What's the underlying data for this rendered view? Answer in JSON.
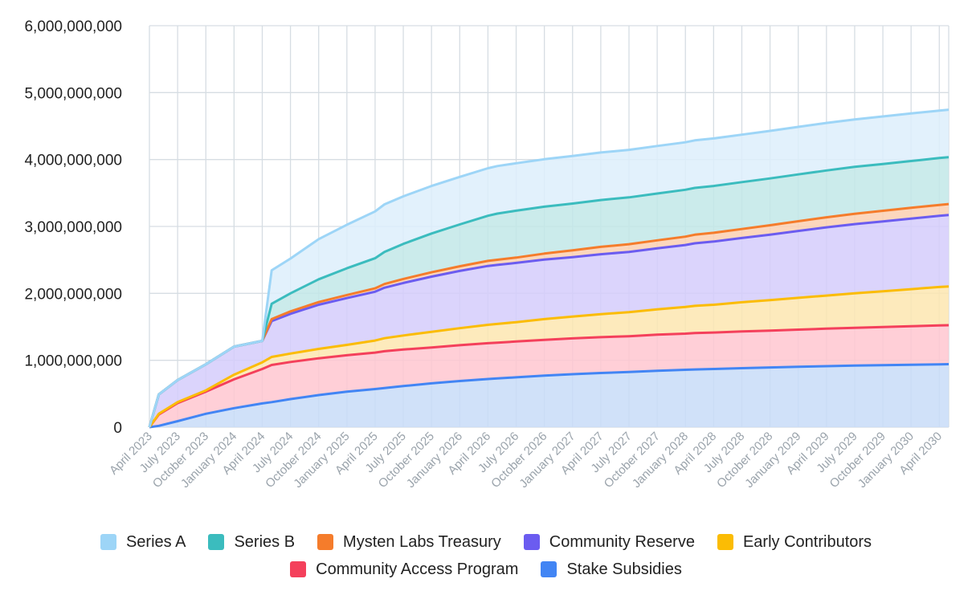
{
  "chart_data": {
    "type": "area",
    "stacked": true,
    "title": "",
    "xlabel": "",
    "ylabel": "",
    "ylim": [
      0,
      6000000000
    ],
    "y_ticks": [
      "0",
      "1,000,000,000",
      "2,000,000,000",
      "3,000,000,000",
      "4,000,000,000",
      "5,000,000,000",
      "6,000,000,000"
    ],
    "x_tick_labels": [
      "April 2023",
      "July 2023",
      "October 2023",
      "January 2024",
      "April 2024",
      "July 2024",
      "October 2024",
      "January 2025",
      "April 2025",
      "July 2025",
      "October 2025",
      "January 2026",
      "April 2026",
      "July 2026",
      "October 2026",
      "January 2027",
      "April 2027",
      "July 2027",
      "October 2027",
      "January 2028",
      "April 2028",
      "July 2028",
      "October 2028",
      "January 2029",
      "April 2029",
      "July 2029",
      "October 2029",
      "January 2030",
      "April 2030"
    ],
    "x": [
      "2023-04",
      "2023-05",
      "2023-07",
      "2023-10",
      "2024-01",
      "2024-04",
      "2024-05",
      "2024-07",
      "2024-10",
      "2025-01",
      "2025-04",
      "2025-05",
      "2025-07",
      "2025-10",
      "2026-01",
      "2026-04",
      "2026-05",
      "2026-07",
      "2026-10",
      "2027-01",
      "2027-04",
      "2027-07",
      "2027-10",
      "2028-01",
      "2028-02",
      "2028-04",
      "2028-07",
      "2028-10",
      "2029-01",
      "2029-04",
      "2029-07",
      "2029-10",
      "2030-01",
      "2030-04",
      "2030-05"
    ],
    "grid": true,
    "legend_position": "bottom",
    "series": [
      {
        "name": "Stake Subsidies",
        "color": "#4285f4",
        "fill": "#c8dcf8",
        "values": [
          0,
          20000000,
          90000000,
          200000000,
          285000000,
          355000000,
          375000000,
          420000000,
          480000000,
          530000000,
          570000000,
          585000000,
          615000000,
          655000000,
          690000000,
          720000000,
          728000000,
          745000000,
          770000000,
          792000000,
          810000000,
          825000000,
          842000000,
          858000000,
          863000000,
          870000000,
          882000000,
          893000000,
          903000000,
          912000000,
          920000000,
          926000000,
          933000000,
          940000000,
          942000000
        ]
      },
      {
        "name": "Community Access Program",
        "color": "#f4405b",
        "fill": "#ffc7d0",
        "values": [
          0,
          170000000,
          270000000,
          330000000,
          430000000,
          515000000,
          555000000,
          555000000,
          550000000,
          545000000,
          545000000,
          550000000,
          545000000,
          535000000,
          535000000,
          535000000,
          535000000,
          535000000,
          535000000,
          535000000,
          535000000,
          535000000,
          540000000,
          540000000,
          545000000,
          545000000,
          550000000,
          550000000,
          555000000,
          560000000,
          565000000,
          570000000,
          575000000,
          580000000,
          582000000
        ]
      },
      {
        "name": "Early Contributors",
        "color": "#fbbc04",
        "fill": "#fde6b0",
        "values": [
          0,
          10000000,
          15000000,
          20000000,
          70000000,
          100000000,
          120000000,
          125000000,
          140000000,
          155000000,
          180000000,
          195000000,
          210000000,
          235000000,
          255000000,
          275000000,
          280000000,
          290000000,
          310000000,
          325000000,
          345000000,
          360000000,
          380000000,
          400000000,
          405000000,
          415000000,
          435000000,
          455000000,
          475000000,
          495000000,
          515000000,
          535000000,
          555000000,
          575000000,
          580000000
        ]
      },
      {
        "name": "Community Reserve",
        "color": "#6b5cf0",
        "fill": "#d5cdfb",
        "values": [
          0,
          290000000,
          330000000,
          390000000,
          420000000,
          320000000,
          535000000,
          595000000,
          660000000,
          700000000,
          730000000,
          755000000,
          785000000,
          825000000,
          855000000,
          880000000,
          882000000,
          885000000,
          890000000,
          890000000,
          895000000,
          900000000,
          910000000,
          925000000,
          935000000,
          945000000,
          960000000,
          980000000,
          1000000000,
          1020000000,
          1035000000,
          1045000000,
          1055000000,
          1065000000,
          1068000000
        ]
      },
      {
        "name": "Mysten Labs Treasury",
        "color": "#f57c2b",
        "fill": "#fcd0b2",
        "values": [
          0,
          0,
          0,
          0,
          0,
          0,
          30000000,
          35000000,
          40000000,
          45000000,
          50000000,
          55000000,
          60000000,
          65000000,
          70000000,
          75000000,
          77000000,
          80000000,
          90000000,
          100000000,
          110000000,
          115000000,
          120000000,
          125000000,
          128000000,
          130000000,
          135000000,
          140000000,
          145000000,
          150000000,
          155000000,
          158000000,
          160000000,
          162000000,
          163000000
        ]
      },
      {
        "name": "Series B",
        "color": "#3bbcbe",
        "fill": "#c2e7e7",
        "values": [
          0,
          0,
          0,
          0,
          0,
          0,
          230000000,
          270000000,
          340000000,
          400000000,
          450000000,
          480000000,
          525000000,
          580000000,
          625000000,
          675000000,
          690000000,
          700000000,
          700000000,
          700000000,
          700000000,
          700000000,
          700000000,
          700000000,
          700000000,
          700000000,
          700000000,
          700000000,
          700000000,
          700000000,
          700000000,
          700000000,
          700000000,
          700000000,
          700000000
        ]
      },
      {
        "name": "Series A",
        "color": "#9dd5f7",
        "fill": "#ddeffb",
        "values": [
          0,
          0,
          0,
          0,
          0,
          0,
          500000000,
          520000000,
          600000000,
          650000000,
          700000000,
          710000000,
          710000000,
          710000000,
          710000000,
          710000000,
          710000000,
          710000000,
          710000000,
          710000000,
          710000000,
          710000000,
          710000000,
          710000000,
          710000000,
          710000000,
          710000000,
          710000000,
          710000000,
          710000000,
          710000000,
          710000000,
          710000000,
          710000000,
          710000000
        ]
      }
    ]
  },
  "legend": {
    "rows": [
      [
        {
          "label": "Series A",
          "color": "#9dd5f7"
        },
        {
          "label": "Series B",
          "color": "#3bbcbe"
        },
        {
          "label": "Mysten Labs Treasury",
          "color": "#f57c2b"
        },
        {
          "label": "Community Reserve",
          "color": "#6b5cf0"
        },
        {
          "label": "Early Contributors",
          "color": "#fbbc04"
        }
      ],
      [
        {
          "label": "Community Access Program",
          "color": "#f4405b"
        },
        {
          "label": "Stake Subsidies",
          "color": "#4285f4"
        }
      ]
    ]
  }
}
